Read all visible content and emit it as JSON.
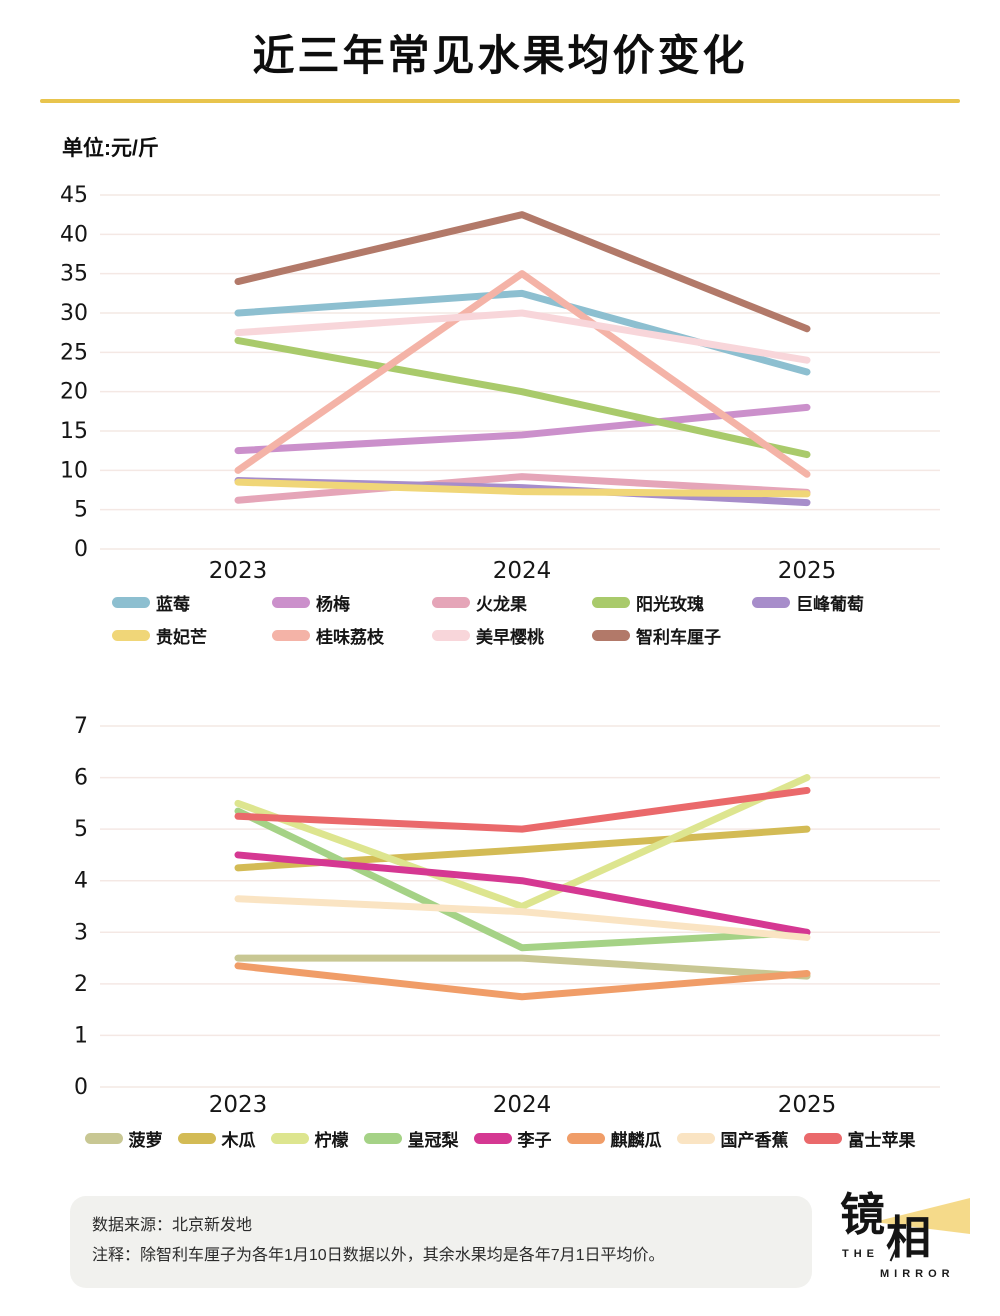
{
  "header": {
    "title": "近三年常见水果均价变化",
    "unit_label": "单位:元/斤",
    "accent_color": "#e8c44d"
  },
  "chart_data": [
    {
      "type": "line",
      "x": [
        "2023",
        "2024",
        "2025"
      ],
      "ylim": [
        0,
        45
      ],
      "ytick_step": 5,
      "grid": true,
      "legend_position": "bottom",
      "series": [
        {
          "name": "蓝莓",
          "color": "#8dbfd0",
          "values": [
            30,
            32.5,
            22.5
          ]
        },
        {
          "name": "杨梅",
          "color": "#cb90cb",
          "values": [
            12.5,
            14.5,
            18
          ]
        },
        {
          "name": "火龙果",
          "color": "#e5a5b8",
          "values": [
            6.2,
            9.2,
            7.2
          ]
        },
        {
          "name": "阳光玫瑰",
          "color": "#a9ca6b",
          "values": [
            26.5,
            20,
            12
          ]
        },
        {
          "name": "巨峰葡萄",
          "color": "#a78dca",
          "values": [
            8.7,
            7.8,
            5.9
          ]
        },
        {
          "name": "贵妃芒",
          "color": "#f0d678",
          "values": [
            8.5,
            7.3,
            7
          ]
        },
        {
          "name": "桂味荔枝",
          "color": "#f4b3a7",
          "values": [
            10,
            35,
            9.5
          ]
        },
        {
          "name": "美早樱桃",
          "color": "#f8d6da",
          "values": [
            27.5,
            30,
            24
          ]
        },
        {
          "name": "智利车厘子",
          "color": "#b27969",
          "values": [
            34,
            42.5,
            28
          ]
        }
      ]
    },
    {
      "type": "line",
      "x": [
        "2023",
        "2024",
        "2025"
      ],
      "ylim": [
        0,
        7
      ],
      "ytick_step": 1,
      "grid": true,
      "legend_position": "bottom",
      "series": [
        {
          "name": "菠萝",
          "color": "#c8c793",
          "values": [
            2.5,
            2.5,
            2.15
          ]
        },
        {
          "name": "木瓜",
          "color": "#d3bb55",
          "values": [
            4.25,
            4.6,
            5
          ]
        },
        {
          "name": "柠檬",
          "color": "#dde58f",
          "values": [
            5.5,
            3.5,
            6
          ]
        },
        {
          "name": "皇冠梨",
          "color": "#a5d286",
          "values": [
            5.35,
            2.7,
            3
          ]
        },
        {
          "name": "李子",
          "color": "#d53892",
          "values": [
            4.5,
            4,
            3
          ]
        },
        {
          "name": "麒麟瓜",
          "color": "#f09d68",
          "values": [
            2.35,
            1.75,
            2.2
          ]
        },
        {
          "name": "国产香蕉",
          "color": "#fae4c3",
          "values": [
            3.65,
            3.4,
            2.9
          ]
        },
        {
          "name": "富士苹果",
          "color": "#ea696b",
          "values": [
            5.25,
            5,
            5.75
          ]
        }
      ]
    }
  ],
  "footer": {
    "source": "数据来源：北京新发地",
    "note": "注释：除智利车厘子为各年1月10日数据以外，其余水果均是各年7月1日平均价。"
  },
  "logo": {
    "char_top": "镜",
    "char_bottom": "相",
    "en_top": "THE",
    "en_bottom": "MIRROR",
    "beam_color": "#f3d376"
  }
}
